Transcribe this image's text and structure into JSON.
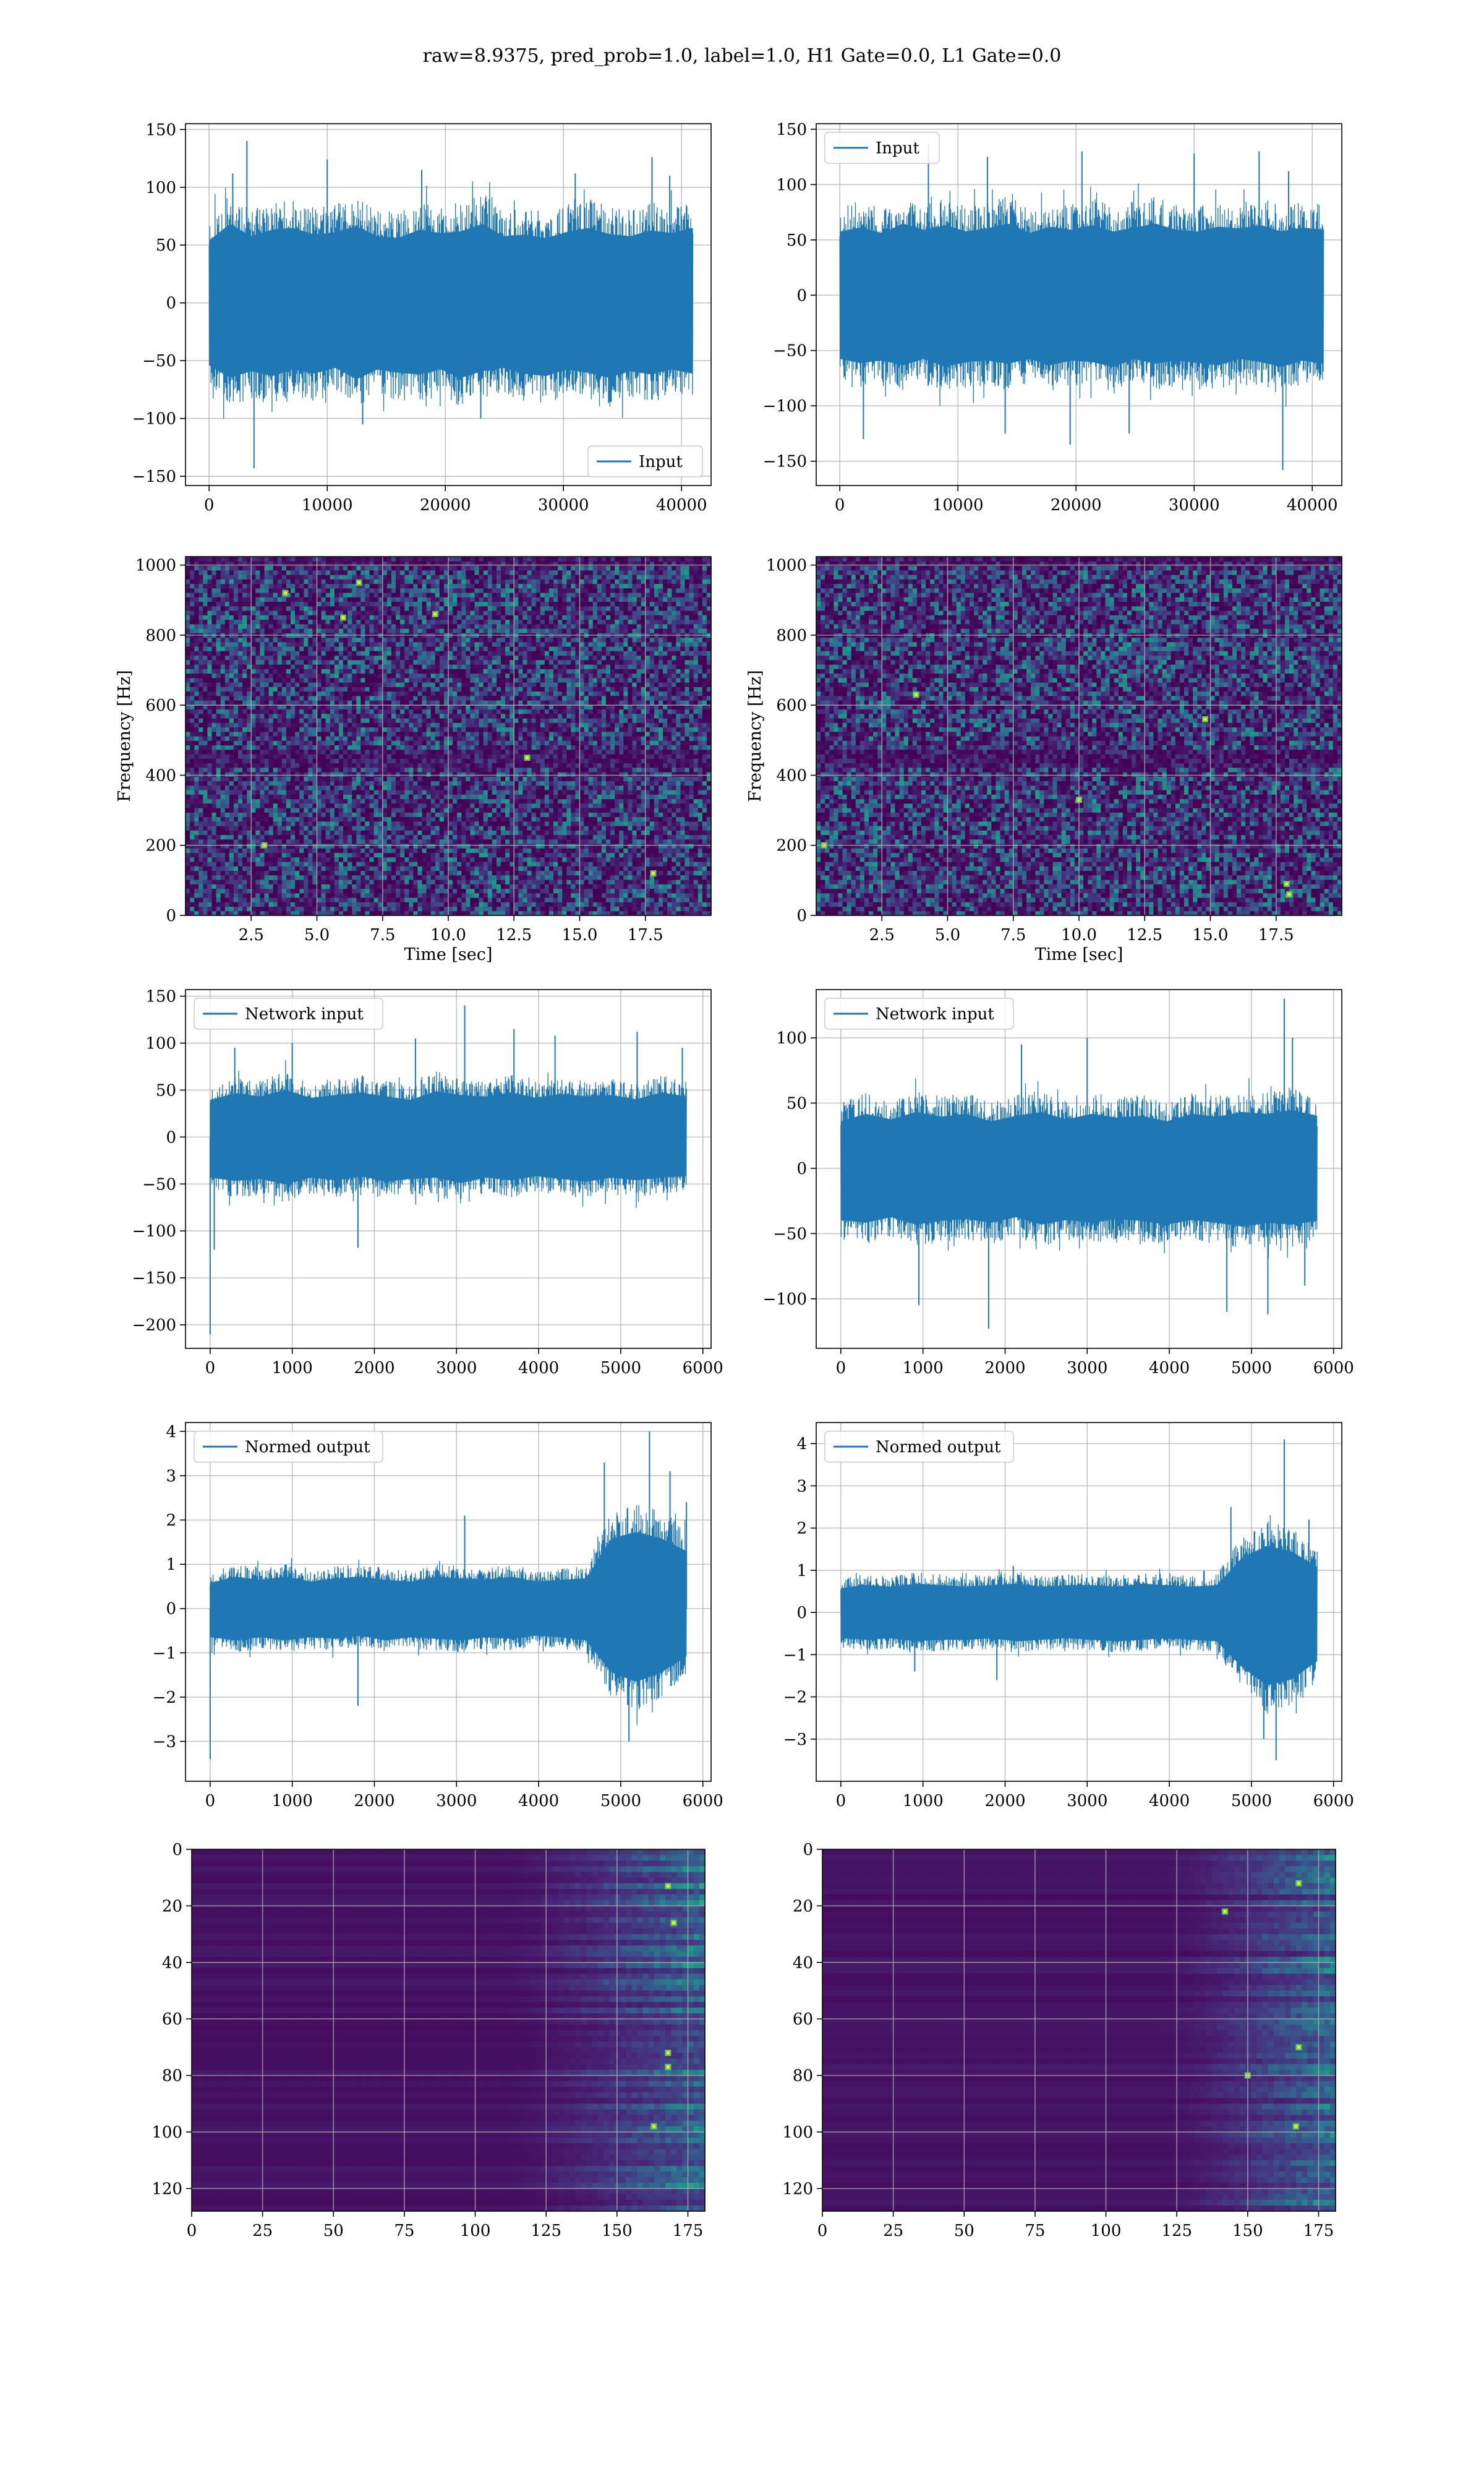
{
  "figure": {
    "suptitle": "raw=8.9375, pred_prob=1.0, label=1.0, H1 Gate=0.0, L1 Gate=0.0"
  },
  "colors": {
    "line": "#1f77b4",
    "grid": "#b0b0b0",
    "viridis_dark": "#440154",
    "viridis_mid": "#3b528b",
    "viridis_teal": "#21918c",
    "viridis_green": "#5ec962",
    "viridis_yellow": "#fde725"
  },
  "chart_data": [
    {
      "id": "r1c1",
      "type": "line",
      "title": "",
      "xlabel": "",
      "ylabel": "",
      "legend": {
        "label": "Input",
        "position": "lower-right"
      },
      "xlim": [
        -2000,
        42500
      ],
      "ylim": [
        -158,
        155
      ],
      "xticks": [
        0,
        10000,
        20000,
        30000,
        40000
      ],
      "yticks": [
        -150,
        -100,
        -50,
        0,
        50,
        100,
        150
      ],
      "series": [
        {
          "name": "Input",
          "x_range": [
            0,
            40960
          ],
          "env_top": [
            75,
            95,
            80,
            88,
            90,
            82,
            85,
            92,
            80,
            78,
            88,
            84,
            86,
            95,
            80,
            82,
            78,
            85,
            90,
            83,
            80,
            87,
            84,
            90
          ],
          "env_bot": [
            -75,
            -90,
            -82,
            -88,
            -80,
            -85,
            -78,
            -92,
            -80,
            -84,
            -86,
            -80,
            -90,
            -82,
            -78,
            -85,
            -88,
            -80,
            -84,
            -90,
            -82,
            -86,
            -80,
            -85
          ],
          "spikes": [
            [
              2000,
              112
            ],
            [
              3200,
              140
            ],
            [
              3800,
              -143
            ],
            [
              10000,
              124
            ],
            [
              13000,
              -105
            ],
            [
              18000,
              115
            ],
            [
              23000,
              -100
            ],
            [
              31000,
              112
            ],
            [
              37500,
              126
            ],
            [
              39000,
              110
            ]
          ],
          "seed": 11
        }
      ]
    },
    {
      "id": "r1c2",
      "type": "line",
      "title": "",
      "xlabel": "",
      "ylabel": "",
      "legend": {
        "label": "Input",
        "position": "upper-left"
      },
      "xlim": [
        -2000,
        42500
      ],
      "ylim": [
        -172,
        155
      ],
      "xticks": [
        0,
        10000,
        20000,
        30000,
        40000
      ],
      "yticks": [
        -150,
        -100,
        -50,
        0,
        50,
        100,
        150
      ],
      "series": [
        {
          "name": "Input",
          "x_range": [
            0,
            40960
          ],
          "env_top": [
            80,
            85,
            78,
            90,
            82,
            88,
            80,
            84,
            90,
            78,
            86,
            82,
            88,
            80,
            85,
            90,
            82,
            80,
            86,
            84,
            88,
            80,
            85,
            82
          ],
          "env_bot": [
            -80,
            -85,
            -82,
            -88,
            -80,
            -90,
            -84,
            -82,
            -86,
            -80,
            -88,
            -82,
            -84,
            -90,
            -80,
            -86,
            -82,
            -85,
            -88,
            -80,
            -84,
            -90,
            -82,
            -86
          ],
          "spikes": [
            [
              2000,
              -130
            ],
            [
              7500,
              137
            ],
            [
              12500,
              125
            ],
            [
              14000,
              -125
            ],
            [
              19500,
              -135
            ],
            [
              20500,
              130
            ],
            [
              24500,
              -125
            ],
            [
              30000,
              128
            ],
            [
              35500,
              130
            ],
            [
              37500,
              -158
            ],
            [
              38000,
              112
            ]
          ],
          "seed": 23
        }
      ]
    },
    {
      "id": "r2c1",
      "type": "heatmap",
      "title": "",
      "xlabel": "Time [sec]",
      "ylabel": "Frequency [Hz]",
      "xlim": [
        0,
        20
      ],
      "ylim": [
        0,
        1024
      ],
      "xticks": [
        2.5,
        5.0,
        7.5,
        10.0,
        12.5,
        15.0,
        17.5
      ],
      "yticks": [
        0,
        200,
        400,
        600,
        800,
        1000
      ],
      "cols": 120,
      "rows": 80,
      "seed": 101,
      "band_rows": [
        [
          33,
          36
        ],
        [
          78,
          80
        ]
      ],
      "bright": [
        [
          6,
          850
        ],
        [
          6.6,
          950
        ],
        [
          9.5,
          860
        ],
        [
          3.8,
          920
        ],
        [
          17.8,
          120
        ],
        [
          3.0,
          200
        ],
        [
          13,
          450
        ]
      ]
    },
    {
      "id": "r2c2",
      "type": "heatmap",
      "title": "",
      "xlabel": "Time [sec]",
      "ylabel": "Frequency [Hz]",
      "xlim": [
        0,
        20
      ],
      "ylim": [
        0,
        1024
      ],
      "xticks": [
        2.5,
        5.0,
        7.5,
        10.0,
        12.5,
        15.0,
        17.5
      ],
      "yticks": [
        0,
        200,
        400,
        600,
        800,
        1000
      ],
      "cols": 120,
      "rows": 80,
      "seed": 202,
      "band_rows": [
        [
          33,
          36
        ],
        [
          78,
          80
        ]
      ],
      "bright": [
        [
          3.8,
          630
        ],
        [
          17.9,
          90
        ],
        [
          18.0,
          60
        ],
        [
          10.0,
          330
        ],
        [
          14.8,
          560
        ],
        [
          0.3,
          200
        ]
      ]
    },
    {
      "id": "r3c1",
      "type": "line",
      "title": "",
      "xlabel": "",
      "ylabel": "",
      "legend": {
        "label": "Network input",
        "position": "upper-left"
      },
      "xlim": [
        -300,
        6100
      ],
      "ylim": [
        -225,
        157
      ],
      "xticks": [
        0,
        1000,
        2000,
        3000,
        4000,
        5000,
        6000
      ],
      "yticks": [
        -200,
        -150,
        -100,
        -50,
        0,
        50,
        100,
        150
      ],
      "series": [
        {
          "name": "Network input",
          "x_range": [
            0,
            5800
          ],
          "env_top": [
            55,
            65,
            60,
            70,
            58,
            62,
            66,
            60,
            55,
            68,
            62,
            60,
            66,
            58,
            64,
            60,
            62,
            56,
            66,
            60
          ],
          "env_bot": [
            -60,
            -65,
            -62,
            -70,
            -60,
            -64,
            -58,
            -66,
            -62,
            -60,
            -68,
            -60,
            -64,
            -58,
            -62,
            -66,
            -60,
            -64,
            -60,
            -58
          ],
          "spikes": [
            [
              0,
              -210
            ],
            [
              50,
              -120
            ],
            [
              300,
              95
            ],
            [
              1000,
              100
            ],
            [
              1800,
              -118
            ],
            [
              2500,
              105
            ],
            [
              3100,
              140
            ],
            [
              3700,
              115
            ],
            [
              4200,
              108
            ],
            [
              5200,
              112
            ],
            [
              5750,
              95
            ]
          ],
          "seed": 37
        }
      ]
    },
    {
      "id": "r3c2",
      "type": "line",
      "title": "",
      "xlabel": "",
      "ylabel": "",
      "legend": {
        "label": "Network input",
        "position": "upper-left"
      },
      "xlim": [
        -300,
        6100
      ],
      "ylim": [
        -138,
        137
      ],
      "xticks": [
        0,
        1000,
        2000,
        3000,
        4000,
        5000,
        6000
      ],
      "yticks": [
        -100,
        -50,
        0,
        50,
        100
      ],
      "series": [
        {
          "name": "Network input",
          "x_range": [
            0,
            5800
          ],
          "env_top": [
            50,
            58,
            52,
            60,
            55,
            58,
            50,
            56,
            60,
            52,
            58,
            54,
            56,
            50,
            58,
            55,
            60,
            58,
            62,
            56
          ],
          "env_bot": [
            -55,
            -58,
            -52,
            -60,
            -56,
            -54,
            -58,
            -52,
            -60,
            -55,
            -58,
            -54,
            -56,
            -60,
            -55,
            -58,
            -62,
            -58,
            -60,
            -56
          ],
          "spikes": [
            [
              950,
              -105
            ],
            [
              1800,
              -123
            ],
            [
              2200,
              95
            ],
            [
              3000,
              100
            ],
            [
              4700,
              -110
            ],
            [
              5200,
              -112
            ],
            [
              5400,
              130
            ],
            [
              5500,
              100
            ],
            [
              5650,
              -90
            ]
          ],
          "seed": 41
        }
      ]
    },
    {
      "id": "r4c1",
      "type": "line",
      "title": "",
      "xlabel": "",
      "ylabel": "",
      "legend": {
        "label": "Normed output",
        "position": "upper-left"
      },
      "xlim": [
        -300,
        6100
      ],
      "ylim": [
        -3.9,
        4.2
      ],
      "xticks": [
        0,
        1000,
        2000,
        3000,
        4000,
        5000,
        6000
      ],
      "yticks": [
        -3,
        -2,
        -1,
        0,
        1,
        2,
        3,
        4
      ],
      "series": [
        {
          "name": "Normed output",
          "x_range": [
            0,
            5800
          ],
          "env_top": [
            0.8,
            1.0,
            0.9,
            1.0,
            0.85,
            0.95,
            1.0,
            0.9,
            0.85,
            1.0,
            0.95,
            0.9,
            1.0,
            0.85,
            0.9,
            0.95,
            2.2,
            2.4,
            2.2,
            1.8
          ],
          "env_bot": [
            -0.9,
            -1.0,
            -0.9,
            -1.0,
            -0.9,
            -0.95,
            -0.85,
            -1.0,
            -0.9,
            -0.95,
            -1.0,
            -0.9,
            -0.95,
            -0.85,
            -0.9,
            -1.0,
            -2.0,
            -2.3,
            -2.0,
            -1.5
          ],
          "spikes": [
            [
              0,
              -3.4
            ],
            [
              1800,
              -2.2
            ],
            [
              3100,
              2.1
            ],
            [
              4800,
              3.3
            ],
            [
              5100,
              -3.0
            ],
            [
              5350,
              4.0
            ],
            [
              5600,
              3.1
            ],
            [
              5800,
              2.4
            ]
          ],
          "seed": 53
        }
      ]
    },
    {
      "id": "r4c2",
      "type": "line",
      "title": "",
      "xlabel": "",
      "ylabel": "",
      "legend": {
        "label": "Normed output",
        "position": "upper-left"
      },
      "xlim": [
        -300,
        6100
      ],
      "ylim": [
        -4.0,
        4.5
      ],
      "xticks": [
        0,
        1000,
        2000,
        3000,
        4000,
        5000,
        6000
      ],
      "yticks": [
        -3,
        -2,
        -1,
        0,
        1,
        2,
        3,
        4
      ],
      "series": [
        {
          "name": "Normed output",
          "x_range": [
            0,
            5800
          ],
          "env_top": [
            0.8,
            0.9,
            0.85,
            0.95,
            0.9,
            0.85,
            0.9,
            0.95,
            0.85,
            0.9,
            0.9,
            0.85,
            0.95,
            0.9,
            0.85,
            0.9,
            1.8,
            2.2,
            2.0,
            1.5
          ],
          "env_bot": [
            -0.85,
            -0.9,
            -0.85,
            -0.95,
            -0.9,
            -0.9,
            -0.85,
            -0.95,
            -0.9,
            -0.85,
            -0.9,
            -0.95,
            -0.9,
            -0.85,
            -0.9,
            -0.95,
            -1.8,
            -2.4,
            -2.2,
            -1.6
          ],
          "spikes": [
            [
              900,
              -1.4
            ],
            [
              1900,
              -1.6
            ],
            [
              2100,
              1.1
            ],
            [
              4750,
              2.5
            ],
            [
              5150,
              -3.0
            ],
            [
              5300,
              -3.5
            ],
            [
              5400,
              4.1
            ],
            [
              5700,
              2.2
            ]
          ],
          "seed": 61
        }
      ]
    },
    {
      "id": "r5c1",
      "type": "heatmap",
      "title": "",
      "xlabel": "",
      "ylabel": "",
      "xlim": [
        0,
        181
      ],
      "ylim": [
        0,
        128
      ],
      "y_inverted": true,
      "xticks": [
        0,
        25,
        50,
        75,
        100,
        125,
        150,
        175
      ],
      "yticks": [
        0,
        20,
        40,
        60,
        80,
        100,
        120
      ],
      "cols": 91,
      "rows": 64,
      "seed": 303,
      "onset": 110,
      "hot": [
        [
          168,
          72
        ],
        [
          168,
          77
        ],
        [
          163,
          98
        ],
        [
          168,
          13
        ],
        [
          170,
          26
        ]
      ]
    },
    {
      "id": "r5c2",
      "type": "heatmap",
      "title": "",
      "xlabel": "",
      "ylabel": "",
      "xlim": [
        0,
        181
      ],
      "ylim": [
        0,
        128
      ],
      "y_inverted": true,
      "xticks": [
        0,
        25,
        50,
        75,
        100,
        125,
        150,
        175
      ],
      "yticks": [
        0,
        20,
        40,
        60,
        80,
        100,
        120
      ],
      "cols": 91,
      "rows": 64,
      "seed": 404,
      "onset": 120,
      "hot": [
        [
          168,
          70
        ],
        [
          167,
          98
        ],
        [
          168,
          12
        ],
        [
          150,
          80
        ],
        [
          142,
          22
        ]
      ]
    }
  ]
}
